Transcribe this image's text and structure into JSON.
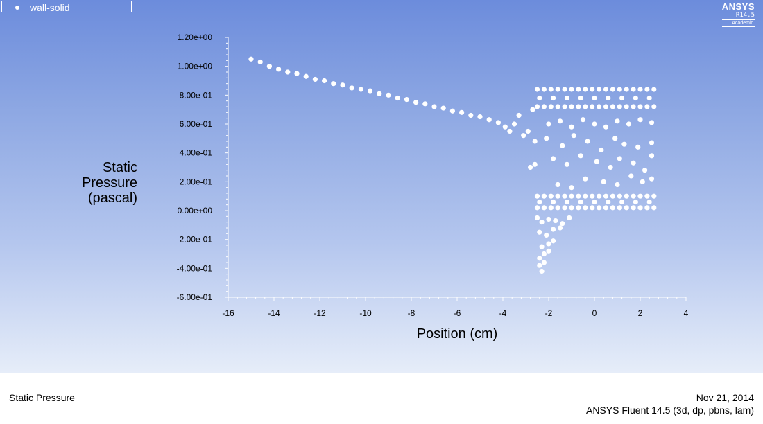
{
  "legend": {
    "series_label": "wall-solid"
  },
  "brand": {
    "name": "ANSYS",
    "version": "R14.5",
    "edition": "Academic"
  },
  "footer": {
    "quantity": "Static Pressure",
    "date": "Nov 21, 2014",
    "solver": "ANSYS Fluent 14.5 (3d, dp, pbns, lam)"
  },
  "colors": {
    "marker": "#ffffff",
    "axis": "#ffffff",
    "label": "#000000"
  },
  "chart_data": {
    "type": "scatter",
    "xlabel": "Position (cm)",
    "ylabel_lines": [
      "Static",
      "Pressure",
      "(pascal)"
    ],
    "xlim": [
      -16,
      4
    ],
    "ylim": [
      -0.6,
      1.2
    ],
    "x_ticks": [
      -16,
      -14,
      -12,
      -10,
      -8,
      -6,
      -4,
      -2,
      0,
      2,
      4
    ],
    "x_tick_labels": [
      "-16",
      "-14",
      "-12",
      "-10",
      "-8",
      "-6",
      "-4",
      "-2",
      "0",
      "2",
      "4"
    ],
    "y_ticks": [
      -0.6,
      -0.4,
      -0.2,
      0.0,
      0.2,
      0.4,
      0.6,
      0.8,
      1.0,
      1.2
    ],
    "y_tick_labels": [
      "-6.00e-01",
      "-4.00e-01",
      "-2.00e-01",
      "0.00e+00",
      "2.00e-01",
      "4.00e-01",
      "6.00e-01",
      "8.00e-01",
      "1.00e+00",
      "1.20e+00"
    ],
    "grid": false,
    "legend_position": "top-left",
    "series": [
      {
        "name": "wall-solid",
        "points": [
          [
            -15.0,
            1.05
          ],
          [
            -14.6,
            1.03
          ],
          [
            -14.2,
            1.0
          ],
          [
            -13.8,
            0.98
          ],
          [
            -13.4,
            0.96
          ],
          [
            -13.0,
            0.95
          ],
          [
            -12.6,
            0.93
          ],
          [
            -12.2,
            0.91
          ],
          [
            -11.8,
            0.9
          ],
          [
            -11.4,
            0.88
          ],
          [
            -11.0,
            0.87
          ],
          [
            -10.6,
            0.85
          ],
          [
            -10.2,
            0.84
          ],
          [
            -9.8,
            0.83
          ],
          [
            -9.4,
            0.81
          ],
          [
            -9.0,
            0.8
          ],
          [
            -8.6,
            0.78
          ],
          [
            -8.2,
            0.77
          ],
          [
            -7.8,
            0.75
          ],
          [
            -7.4,
            0.74
          ],
          [
            -7.0,
            0.72
          ],
          [
            -6.6,
            0.71
          ],
          [
            -6.2,
            0.69
          ],
          [
            -5.8,
            0.68
          ],
          [
            -5.4,
            0.66
          ],
          [
            -5.0,
            0.65
          ],
          [
            -4.6,
            0.63
          ],
          [
            -4.2,
            0.61
          ],
          [
            -3.9,
            0.58
          ],
          [
            -3.7,
            0.55
          ],
          [
            -3.5,
            0.6
          ],
          [
            -3.3,
            0.66
          ],
          [
            -3.1,
            0.52
          ],
          [
            -2.9,
            0.55
          ],
          [
            -2.7,
            0.7
          ],
          [
            -2.6,
            0.48
          ],
          [
            -2.8,
            0.3
          ],
          [
            -2.6,
            0.32
          ],
          [
            -2.5,
            0.84
          ],
          [
            -2.2,
            0.84
          ],
          [
            -1.9,
            0.84
          ],
          [
            -1.6,
            0.84
          ],
          [
            -1.3,
            0.84
          ],
          [
            -1.0,
            0.84
          ],
          [
            -0.7,
            0.84
          ],
          [
            -0.4,
            0.84
          ],
          [
            -0.1,
            0.84
          ],
          [
            0.2,
            0.84
          ],
          [
            0.5,
            0.84
          ],
          [
            0.8,
            0.84
          ],
          [
            1.1,
            0.84
          ],
          [
            1.4,
            0.84
          ],
          [
            1.7,
            0.84
          ],
          [
            2.0,
            0.84
          ],
          [
            2.3,
            0.84
          ],
          [
            2.6,
            0.84
          ],
          [
            -2.5,
            0.72
          ],
          [
            -2.2,
            0.72
          ],
          [
            -1.9,
            0.72
          ],
          [
            -1.6,
            0.72
          ],
          [
            -1.3,
            0.72
          ],
          [
            -1.0,
            0.72
          ],
          [
            -0.7,
            0.72
          ],
          [
            -0.4,
            0.72
          ],
          [
            -0.1,
            0.72
          ],
          [
            0.2,
            0.72
          ],
          [
            0.5,
            0.72
          ],
          [
            0.8,
            0.72
          ],
          [
            1.1,
            0.72
          ],
          [
            1.4,
            0.72
          ],
          [
            1.7,
            0.72
          ],
          [
            2.0,
            0.72
          ],
          [
            2.3,
            0.72
          ],
          [
            2.6,
            0.72
          ],
          [
            -2.4,
            0.78
          ],
          [
            -1.8,
            0.78
          ],
          [
            -1.2,
            0.78
          ],
          [
            -0.6,
            0.78
          ],
          [
            0.0,
            0.78
          ],
          [
            0.6,
            0.78
          ],
          [
            1.2,
            0.78
          ],
          [
            1.8,
            0.78
          ],
          [
            2.4,
            0.78
          ],
          [
            -2.0,
            0.6
          ],
          [
            -1.5,
            0.62
          ],
          [
            -1.0,
            0.58
          ],
          [
            -0.5,
            0.63
          ],
          [
            0.0,
            0.6
          ],
          [
            0.5,
            0.58
          ],
          [
            1.0,
            0.62
          ],
          [
            1.5,
            0.6
          ],
          [
            2.0,
            0.63
          ],
          [
            2.5,
            0.61
          ],
          [
            -2.1,
            0.5
          ],
          [
            -1.4,
            0.45
          ],
          [
            -0.9,
            0.52
          ],
          [
            -0.3,
            0.48
          ],
          [
            0.3,
            0.42
          ],
          [
            0.9,
            0.5
          ],
          [
            1.3,
            0.46
          ],
          [
            1.9,
            0.44
          ],
          [
            2.5,
            0.47
          ],
          [
            -1.8,
            0.36
          ],
          [
            -1.2,
            0.32
          ],
          [
            -0.6,
            0.38
          ],
          [
            0.1,
            0.34
          ],
          [
            0.7,
            0.3
          ],
          [
            1.1,
            0.36
          ],
          [
            1.7,
            0.33
          ],
          [
            2.2,
            0.28
          ],
          [
            2.5,
            0.38
          ],
          [
            -1.6,
            0.18
          ],
          [
            -1.0,
            0.16
          ],
          [
            -0.4,
            0.22
          ],
          [
            0.4,
            0.2
          ],
          [
            1.0,
            0.18
          ],
          [
            1.6,
            0.24
          ],
          [
            2.1,
            0.2
          ],
          [
            2.5,
            0.22
          ],
          [
            -2.5,
            0.1
          ],
          [
            -2.2,
            0.1
          ],
          [
            -1.9,
            0.1
          ],
          [
            -1.6,
            0.1
          ],
          [
            -1.3,
            0.1
          ],
          [
            -1.0,
            0.1
          ],
          [
            -0.7,
            0.1
          ],
          [
            -0.4,
            0.1
          ],
          [
            -0.1,
            0.1
          ],
          [
            0.2,
            0.1
          ],
          [
            0.5,
            0.1
          ],
          [
            0.8,
            0.1
          ],
          [
            1.1,
            0.1
          ],
          [
            1.4,
            0.1
          ],
          [
            1.7,
            0.1
          ],
          [
            2.0,
            0.1
          ],
          [
            2.3,
            0.1
          ],
          [
            2.6,
            0.1
          ],
          [
            -2.5,
            0.02
          ],
          [
            -2.2,
            0.02
          ],
          [
            -1.9,
            0.02
          ],
          [
            -1.6,
            0.02
          ],
          [
            -1.3,
            0.02
          ],
          [
            -1.0,
            0.02
          ],
          [
            -0.7,
            0.02
          ],
          [
            -0.4,
            0.02
          ],
          [
            -0.1,
            0.02
          ],
          [
            0.2,
            0.02
          ],
          [
            0.5,
            0.02
          ],
          [
            0.8,
            0.02
          ],
          [
            1.1,
            0.02
          ],
          [
            1.4,
            0.02
          ],
          [
            1.7,
            0.02
          ],
          [
            2.0,
            0.02
          ],
          [
            2.3,
            0.02
          ],
          [
            2.6,
            0.02
          ],
          [
            -2.4,
            0.06
          ],
          [
            -1.8,
            0.06
          ],
          [
            -1.2,
            0.06
          ],
          [
            -0.6,
            0.06
          ],
          [
            0.0,
            0.06
          ],
          [
            0.6,
            0.06
          ],
          [
            1.2,
            0.06
          ],
          [
            1.8,
            0.06
          ],
          [
            2.4,
            0.06
          ],
          [
            -2.5,
            -0.05
          ],
          [
            -2.3,
            -0.08
          ],
          [
            -2.0,
            -0.06
          ],
          [
            -1.7,
            -0.07
          ],
          [
            -1.4,
            -0.09
          ],
          [
            -1.1,
            -0.05
          ],
          [
            -2.4,
            -0.15
          ],
          [
            -2.1,
            -0.17
          ],
          [
            -1.8,
            -0.13
          ],
          [
            -1.5,
            -0.12
          ],
          [
            -2.3,
            -0.25
          ],
          [
            -2.0,
            -0.23
          ],
          [
            -1.8,
            -0.21
          ],
          [
            -2.4,
            -0.33
          ],
          [
            -2.2,
            -0.3
          ],
          [
            -2.0,
            -0.28
          ],
          [
            -2.4,
            -0.38
          ],
          [
            -2.2,
            -0.36
          ],
          [
            -2.3,
            -0.42
          ]
        ]
      }
    ]
  }
}
